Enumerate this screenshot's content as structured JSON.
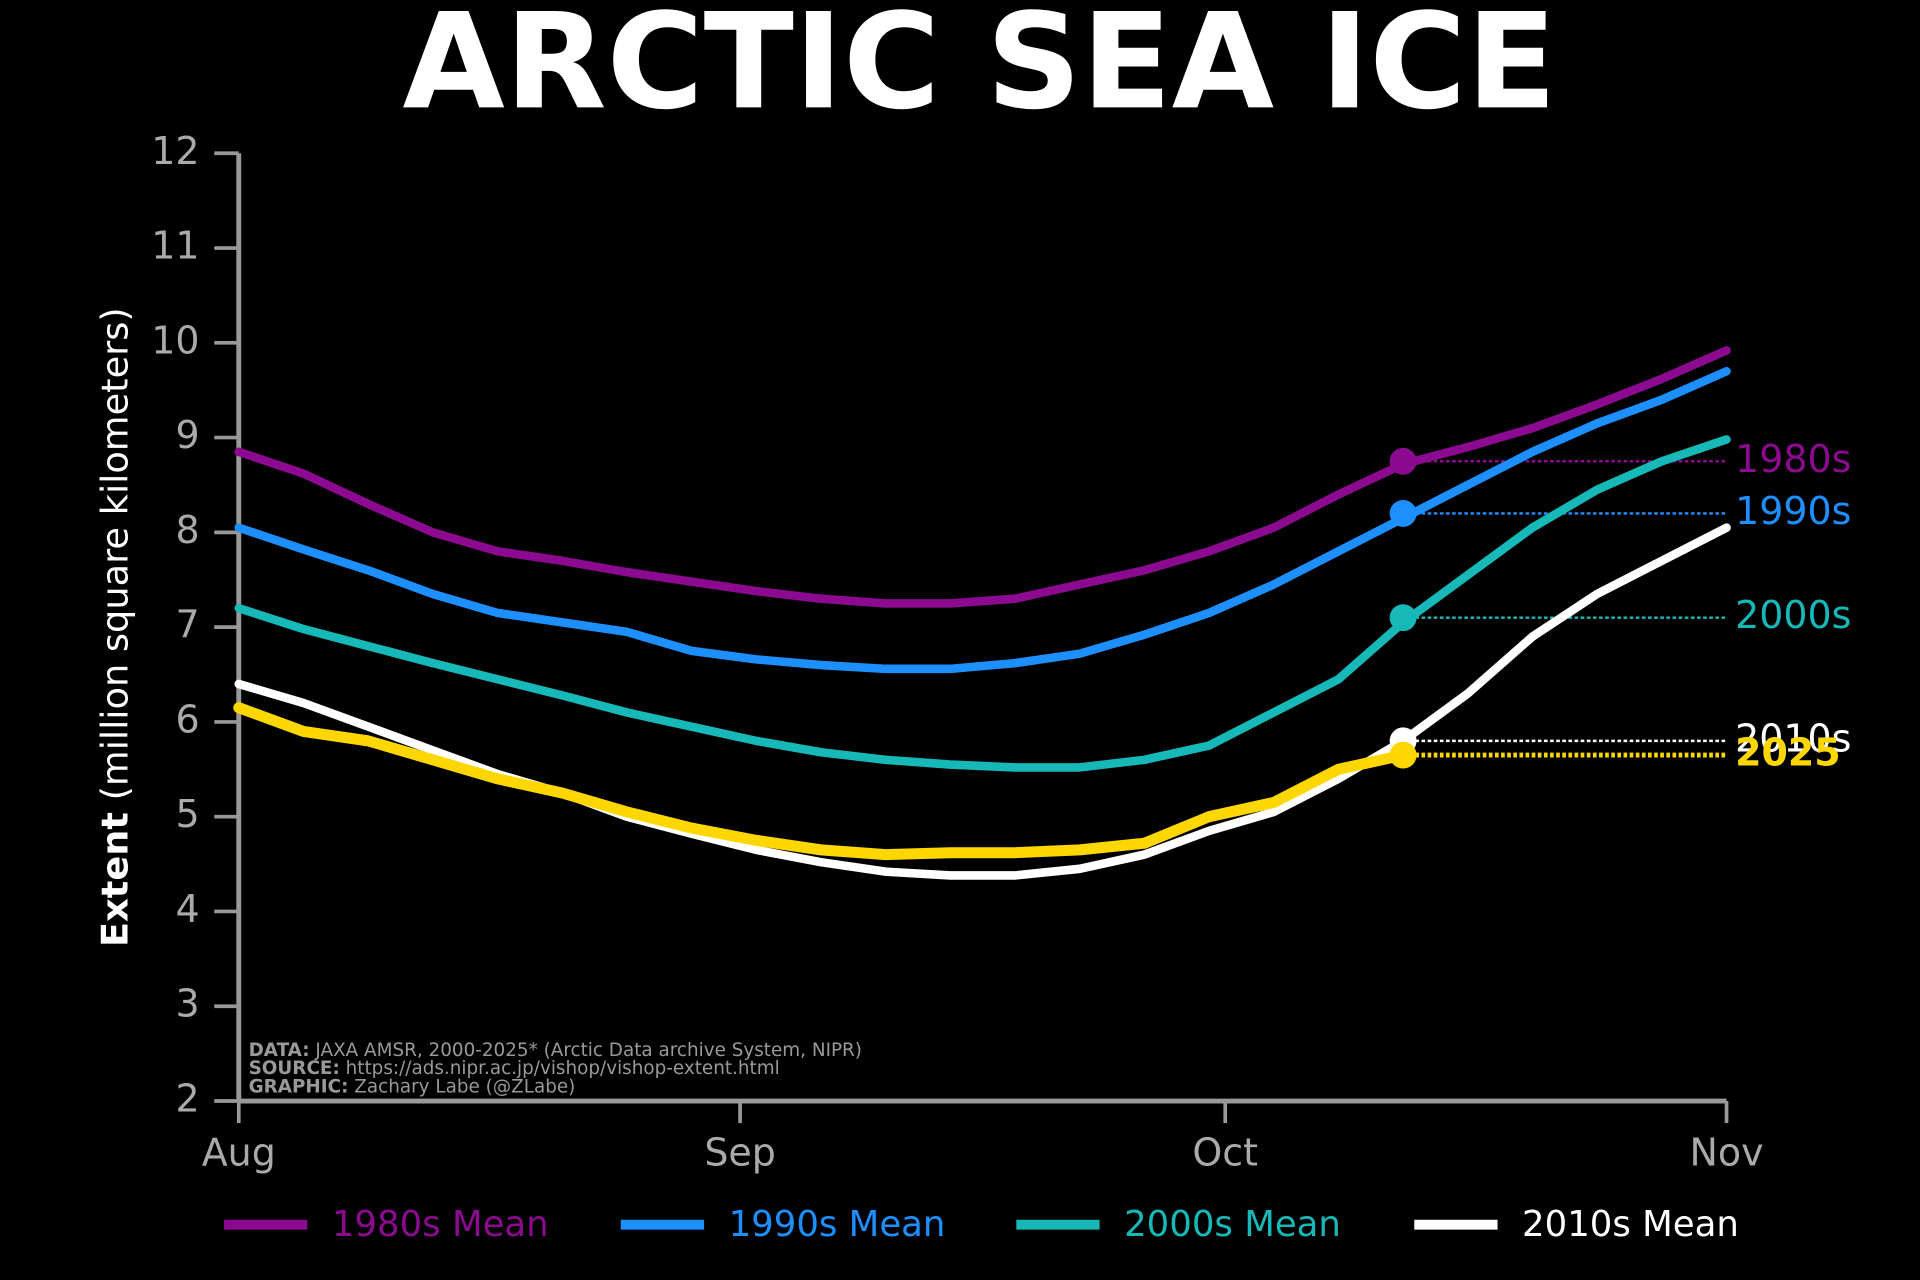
{
  "chart_data": {
    "type": "line",
    "title": "ARCTIC SEA ICE",
    "ylabel_bold": "Extent",
    "ylabel": "(million square kilometers)",
    "x": [
      0,
      4,
      8,
      12,
      16,
      20,
      24,
      28,
      32,
      36,
      40,
      44,
      48,
      52,
      56,
      60,
      64,
      68,
      72,
      76,
      80,
      84,
      88,
      92
    ],
    "xlim": [
      0,
      92
    ],
    "xticks": [
      {
        "value": 0,
        "label": "Aug"
      },
      {
        "value": 31,
        "label": "Sep"
      },
      {
        "value": 61,
        "label": "Oct"
      },
      {
        "value": 92,
        "label": "Nov"
      }
    ],
    "ylim": [
      2,
      12
    ],
    "yticks": [
      2,
      3,
      4,
      5,
      6,
      7,
      8,
      9,
      10,
      11,
      12
    ],
    "marker_x": 72,
    "series": [
      {
        "name": "1980s Mean",
        "label": "1980s",
        "color": "#8b0a8f",
        "marker": 8.75,
        "in_legend": true,
        "values": [
          8.85,
          8.62,
          8.3,
          8.0,
          7.8,
          7.7,
          7.58,
          7.48,
          7.38,
          7.3,
          7.25,
          7.25,
          7.3,
          7.45,
          7.6,
          7.8,
          8.05,
          8.4,
          8.72,
          8.9,
          9.1,
          9.35,
          9.62,
          9.92
        ]
      },
      {
        "name": "1990s Mean",
        "label": "1990s",
        "color": "#1e8fff",
        "marker": 8.2,
        "in_legend": true,
        "values": [
          8.05,
          7.82,
          7.6,
          7.35,
          7.15,
          7.05,
          6.95,
          6.75,
          6.66,
          6.6,
          6.56,
          6.56,
          6.62,
          6.72,
          6.92,
          7.15,
          7.45,
          7.8,
          8.15,
          8.5,
          8.85,
          9.15,
          9.4,
          9.7
        ]
      },
      {
        "name": "2000s Mean",
        "label": "2000s",
        "color": "#17b8b8",
        "marker": 7.1,
        "in_legend": true,
        "values": [
          7.2,
          6.98,
          6.8,
          6.62,
          6.45,
          6.28,
          6.1,
          5.95,
          5.8,
          5.68,
          5.6,
          5.55,
          5.52,
          5.52,
          5.6,
          5.75,
          6.1,
          6.45,
          7.05,
          7.55,
          8.05,
          8.45,
          8.75,
          8.98
        ]
      },
      {
        "name": "2010s Mean",
        "label": "2010s",
        "color": "#ffffff",
        "marker": 5.8,
        "in_legend": true,
        "values": [
          6.4,
          6.2,
          5.95,
          5.7,
          5.45,
          5.25,
          5.0,
          4.82,
          4.65,
          4.52,
          4.42,
          4.38,
          4.38,
          4.45,
          4.6,
          4.85,
          5.05,
          5.4,
          5.8,
          6.3,
          6.9,
          7.35,
          7.7,
          8.05
        ]
      },
      {
        "name": "2025",
        "label": "2025",
        "color": "#ffd700",
        "marker": 5.65,
        "in_legend": false,
        "values": [
          6.15,
          5.9,
          5.8,
          5.6,
          5.4,
          5.25,
          5.05,
          4.88,
          4.75,
          4.65,
          4.6,
          4.62,
          4.62,
          4.65,
          4.72,
          5.0,
          5.15,
          5.5,
          5.65,
          null,
          null,
          null,
          null,
          null
        ]
      }
    ],
    "notes": [
      {
        "label": "DATA:",
        "text": "JAXA AMSR, 2000-2025* (Arctic Data archive System, NIPR)"
      },
      {
        "label": "SOURCE:",
        "text": "https://ads.nipr.ac.jp/vishop/vishop-extent.html"
      },
      {
        "label": "GRAPHIC:",
        "text": "Zachary Labe (@ZLabe)"
      }
    ]
  }
}
